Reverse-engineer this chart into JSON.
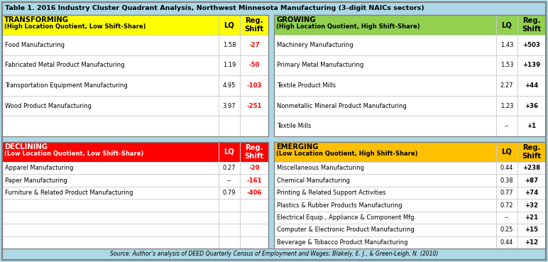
{
  "title": "Table 1. 2016 Industry Cluster Quadrant Analysis, Northwest Minnesota Manufacturing (3-digit NAICs sectors)",
  "title_bg": "#add8e6",
  "title_color": "#000000",
  "quadrants": {
    "transforming": {
      "label": "TRANSFORMING",
      "sublabel": "(High Location Quotient, Low Shift-Share)",
      "bg_color": "#ffff00",
      "text_color": "#000000",
      "rows": [
        {
          "name": "Food Manufacturing",
          "lq": "1.58",
          "shift": "-27",
          "shift_red": true
        },
        {
          "name": "Fabricated Metal Product Manufacturing",
          "lq": "1.19",
          "shift": "-50",
          "shift_red": true
        },
        {
          "name": "Transportation Equipment Manufacturing",
          "lq": "4.95",
          "shift": "-103",
          "shift_red": true
        },
        {
          "name": "Wood Product Manufacturing",
          "lq": "3.97",
          "shift": "-251",
          "shift_red": true
        },
        {
          "name": "",
          "lq": "",
          "shift": "",
          "shift_red": false
        }
      ]
    },
    "growing": {
      "label": "GROWING",
      "sublabel": "(High Location Quotient, High Shift-Share)",
      "bg_color": "#92d050",
      "text_color": "#000000",
      "rows": [
        {
          "name": "Machinery Manufacturing",
          "lq": "1.43",
          "shift": "+503",
          "shift_red": false
        },
        {
          "name": "Primary Metal Manufacturing",
          "lq": "1.53",
          "shift": "+139",
          "shift_red": false
        },
        {
          "name": "Textile Product Mills",
          "lq": "2.27",
          "shift": "+44",
          "shift_red": false
        },
        {
          "name": "Nonmetallic Mineral Product Manufacturing",
          "lq": "1.23",
          "shift": "+36",
          "shift_red": false
        },
        {
          "name": "Textile Mills",
          "lq": "--",
          "shift": "+1",
          "shift_red": false
        }
      ]
    },
    "declining": {
      "label": "DECLINING",
      "sublabel": "(Low Location Quotient, Low Shift-Share)",
      "bg_color": "#ff0000",
      "text_color": "#ffffff",
      "rows": [
        {
          "name": "Apparel Manufacturing",
          "lq": "0.27",
          "shift": "-20",
          "shift_red": true
        },
        {
          "name": "Paper Manufacturing",
          "lq": "--",
          "shift": "-161",
          "shift_red": true
        },
        {
          "name": "Furniture & Related Product Manufacturing",
          "lq": "0.79",
          "shift": "-406",
          "shift_red": true
        },
        {
          "name": "",
          "lq": "",
          "shift": "",
          "shift_red": false
        },
        {
          "name": "",
          "lq": "",
          "shift": "",
          "shift_red": false
        },
        {
          "name": "",
          "lq": "",
          "shift": "",
          "shift_red": false
        },
        {
          "name": "",
          "lq": "",
          "shift": "",
          "shift_red": false
        }
      ]
    },
    "emerging": {
      "label": "EMERGING",
      "sublabel": "(Low Location Quotient, High Shift-Share)",
      "bg_color": "#ffc000",
      "text_color": "#000000",
      "rows": [
        {
          "name": "Miscellaneous Manufacturing",
          "lq": "0.44",
          "shift": "+238",
          "shift_red": false
        },
        {
          "name": "Chemical Manufacturing",
          "lq": "0.38",
          "shift": "+87",
          "shift_red": false
        },
        {
          "name": "Printing & Related Support Activities",
          "lq": "0.77",
          "shift": "+74",
          "shift_red": false
        },
        {
          "name": "Plastics & Rubber Products Manufacturing",
          "lq": "0.72",
          "shift": "+32",
          "shift_red": false
        },
        {
          "name": "Electrical Equip., Appliance & Component Mfg.",
          "lq": "--",
          "shift": "+21",
          "shift_red": false
        },
        {
          "name": "Computer & Electronic Product Manufacturing",
          "lq": "0.25",
          "shift": "+15",
          "shift_red": false
        },
        {
          "name": "Beverage & Tobacco Product Manufacturing",
          "lq": "0.44",
          "shift": "+12",
          "shift_red": false
        }
      ]
    }
  },
  "footer": "Source: Author’s analysis of DEED Quarterly Census of Employment and Wages; Blakely, E. J., & Green-Leigh, N. (2010)",
  "footer_bg": "#add8e6",
  "outer_bg": "#add8e6",
  "lq_header": "LQ",
  "shift_header": "Reg.\nShift",
  "border_color": "#808080",
  "row_line_color": "#c8c8c8",
  "col_line_color": "#c8c8c8"
}
